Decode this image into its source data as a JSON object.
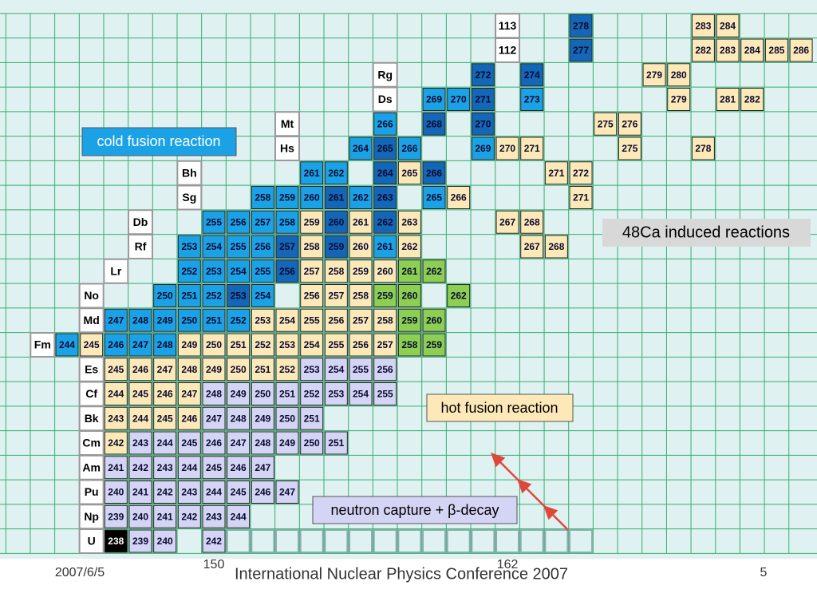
{
  "nuclides": [
    {
      "element": "U",
      "cells": [
        [
          238,
          "black"
        ],
        [
          239,
          "lav"
        ],
        [
          240,
          "lav"
        ],
        [
          242,
          "lav"
        ]
      ]
    },
    {
      "element": "Np",
      "cells": [
        [
          239,
          "lav"
        ],
        [
          240,
          "lav"
        ],
        [
          241,
          "lav"
        ],
        [
          242,
          "lav"
        ],
        [
          243,
          "lav"
        ],
        [
          244,
          "lav"
        ]
      ]
    },
    {
      "element": "Pu",
      "cells": [
        [
          240,
          "lav"
        ],
        [
          241,
          "lav"
        ],
        [
          242,
          "lav"
        ],
        [
          243,
          "lav"
        ],
        [
          244,
          "lav"
        ],
        [
          245,
          "lav"
        ],
        [
          246,
          "lav"
        ],
        [
          247,
          "lav"
        ]
      ]
    },
    {
      "element": "Am",
      "cells": [
        [
          241,
          "lav"
        ],
        [
          242,
          "lav"
        ],
        [
          243,
          "lav"
        ],
        [
          244,
          "lav"
        ],
        [
          245,
          "lav"
        ],
        [
          246,
          "lav"
        ],
        [
          247,
          "lav"
        ]
      ]
    },
    {
      "element": "Cm",
      "cells": [
        [
          242,
          "hot"
        ],
        [
          243,
          "lav"
        ],
        [
          244,
          "lav"
        ],
        [
          245,
          "lav"
        ],
        [
          246,
          "lav"
        ],
        [
          247,
          "lav"
        ],
        [
          248,
          "lav"
        ],
        [
          249,
          "lav"
        ],
        [
          250,
          "lav"
        ],
        [
          251,
          "lav"
        ]
      ]
    },
    {
      "element": "Bk",
      "cells": [
        [
          243,
          "hot"
        ],
        [
          244,
          "hot"
        ],
        [
          245,
          "hot"
        ],
        [
          246,
          "hot"
        ],
        [
          247,
          "lav"
        ],
        [
          248,
          "lav"
        ],
        [
          249,
          "lav"
        ],
        [
          250,
          "lav"
        ],
        [
          251,
          "lav"
        ]
      ]
    },
    {
      "element": "Cf",
      "cells": [
        [
          244,
          "hot"
        ],
        [
          245,
          "hot"
        ],
        [
          246,
          "hot"
        ],
        [
          247,
          "hot"
        ],
        [
          248,
          "lav"
        ],
        [
          249,
          "lav"
        ],
        [
          250,
          "lav"
        ],
        [
          251,
          "lav"
        ],
        [
          252,
          "lav"
        ],
        [
          253,
          "lav"
        ],
        [
          254,
          "lav"
        ],
        [
          255,
          "lav"
        ]
      ]
    },
    {
      "element": "Es",
      "cells": [
        [
          245,
          "hot"
        ],
        [
          246,
          "hot"
        ],
        [
          247,
          "hot"
        ],
        [
          248,
          "hot"
        ],
        [
          249,
          "hot"
        ],
        [
          250,
          "hot"
        ],
        [
          251,
          "hot"
        ],
        [
          252,
          "hot"
        ],
        [
          253,
          "lav"
        ],
        [
          254,
          "lav"
        ],
        [
          255,
          "lav"
        ],
        [
          256,
          "lav"
        ]
      ]
    },
    {
      "element": "Fm",
      "cells": [
        [
          244,
          "cold"
        ],
        [
          245,
          "hot"
        ],
        [
          246,
          "cold"
        ],
        [
          247,
          "cold"
        ],
        [
          248,
          "cold"
        ],
        [
          249,
          "hot"
        ],
        [
          250,
          "hot"
        ],
        [
          251,
          "hot"
        ],
        [
          252,
          "hot"
        ],
        [
          253,
          "hot"
        ],
        [
          254,
          "hot"
        ],
        [
          255,
          "hot"
        ],
        [
          256,
          "hot"
        ],
        [
          257,
          "hot"
        ],
        [
          258,
          "green"
        ],
        [
          259,
          "green"
        ]
      ]
    },
    {
      "element": "Md",
      "cells": [
        [
          247,
          "cold"
        ],
        [
          248,
          "cold"
        ],
        [
          249,
          "cold"
        ],
        [
          250,
          "cold"
        ],
        [
          251,
          "cold"
        ],
        [
          252,
          "cold"
        ],
        [
          253,
          "hot"
        ],
        [
          254,
          "hot"
        ],
        [
          255,
          "hot"
        ],
        [
          256,
          "hot"
        ],
        [
          257,
          "hot"
        ],
        [
          258,
          "hot"
        ],
        [
          259,
          "green"
        ],
        [
          260,
          "green"
        ]
      ]
    },
    {
      "element": "No",
      "cells": [
        [
          250,
          "cold"
        ],
        [
          251,
          "cold"
        ],
        [
          252,
          "cold"
        ],
        [
          253,
          "dark"
        ],
        [
          254,
          "cold"
        ],
        [
          256,
          "hot"
        ],
        [
          257,
          "hot"
        ],
        [
          258,
          "hot"
        ],
        [
          259,
          "green"
        ],
        [
          260,
          "green"
        ],
        [
          262,
          "green"
        ]
      ]
    },
    {
      "element": "Lr",
      "cells": [
        [
          252,
          "cold"
        ],
        [
          253,
          "cold"
        ],
        [
          254,
          "cold"
        ],
        [
          255,
          "cold"
        ],
        [
          256,
          "dark"
        ],
        [
          257,
          "hot"
        ],
        [
          258,
          "hot"
        ],
        [
          259,
          "hot"
        ],
        [
          260,
          "hot"
        ],
        [
          261,
          "green"
        ],
        [
          262,
          "green"
        ]
      ]
    },
    {
      "element": "Rf",
      "cells": [
        [
          253,
          "cold"
        ],
        [
          254,
          "cold"
        ],
        [
          255,
          "cold"
        ],
        [
          256,
          "cold"
        ],
        [
          257,
          "dark"
        ],
        [
          258,
          "hot"
        ],
        [
          259,
          "dark"
        ],
        [
          260,
          "hot"
        ],
        [
          261,
          "cold"
        ],
        [
          262,
          "hot"
        ],
        [
          267,
          "hot"
        ],
        [
          268,
          "hot"
        ]
      ]
    },
    {
      "element": "Db",
      "cells": [
        [
          255,
          "cold"
        ],
        [
          256,
          "cold"
        ],
        [
          257,
          "cold"
        ],
        [
          258,
          "cold"
        ],
        [
          259,
          "hot"
        ],
        [
          260,
          "dark"
        ],
        [
          261,
          "hot"
        ],
        [
          262,
          "dark"
        ],
        [
          263,
          "hot"
        ],
        [
          267,
          "hot"
        ],
        [
          268,
          "hot"
        ]
      ]
    },
    {
      "element": "Sg",
      "cells": [
        [
          258,
          "cold"
        ],
        [
          259,
          "cold"
        ],
        [
          260,
          "cold"
        ],
        [
          261,
          "dark"
        ],
        [
          262,
          "cold"
        ],
        [
          263,
          "dark"
        ],
        [
          265,
          "cold"
        ],
        [
          266,
          "hot"
        ],
        [
          271,
          "hot"
        ]
      ]
    },
    {
      "element": "Bh",
      "cells": [
        [
          261,
          "cold"
        ],
        [
          262,
          "cold"
        ],
        [
          264,
          "dark"
        ],
        [
          265,
          "hot"
        ],
        [
          266,
          "dark"
        ],
        [
          271,
          "hot"
        ],
        [
          272,
          "hot"
        ]
      ]
    },
    {
      "element": "Hs",
      "cells": [
        [
          264,
          "cold"
        ],
        [
          265,
          "dark"
        ],
        [
          266,
          "cold"
        ],
        [
          269,
          "cold"
        ],
        [
          270,
          "hot"
        ],
        [
          271,
          "hot"
        ],
        [
          275,
          "hot"
        ],
        [
          278,
          "hot"
        ]
      ]
    },
    {
      "element": "Mt",
      "cells": [
        [
          266,
          "cold"
        ],
        [
          268,
          "dark"
        ],
        [
          270,
          "dark"
        ],
        [
          275,
          "hot"
        ],
        [
          276,
          "hot"
        ]
      ]
    },
    {
      "element": "Ds",
      "cells": [
        [
          269,
          "cold"
        ],
        [
          270,
          "cold"
        ],
        [
          271,
          "dark"
        ],
        [
          273,
          "cold"
        ],
        [
          279,
          "hot"
        ],
        [
          281,
          "hot"
        ],
        [
          282,
          "hot"
        ]
      ]
    },
    {
      "element": "Rg",
      "cells": [
        [
          272,
          "dark"
        ],
        [
          274,
          "dark"
        ],
        [
          279,
          "hot"
        ],
        [
          280,
          "hot"
        ]
      ]
    },
    {
      "element": "112",
      "cells": [
        [
          277,
          "dark"
        ],
        [
          282,
          "hot"
        ],
        [
          283,
          "hot"
        ],
        [
          284,
          "hot"
        ],
        [
          285,
          "hot"
        ],
        [
          286,
          "hot"
        ]
      ]
    },
    {
      "element": "113",
      "cells": [
        [
          278,
          "dark"
        ],
        [
          283,
          "hot"
        ],
        [
          284,
          "hot"
        ]
      ]
    }
  ],
  "colors": {
    "black": "#000000",
    "lav": "#d4d4f4",
    "hot": "#fde9b8",
    "cold": "#1ba2e6",
    "dark": "#1466b6",
    "green": "#8ccf52"
  },
  "neutron_labels": [
    150,
    162
  ],
  "annotations": {
    "cold": "cold fusion reaction",
    "calcium": "48Ca induced reactions",
    "hot": "hot fusion reaction",
    "capture": "neutron capture + β-decay"
  },
  "footer": {
    "date": "2007/6/5",
    "title": "International Nuclear Physics Conference 2007",
    "page": "5"
  }
}
